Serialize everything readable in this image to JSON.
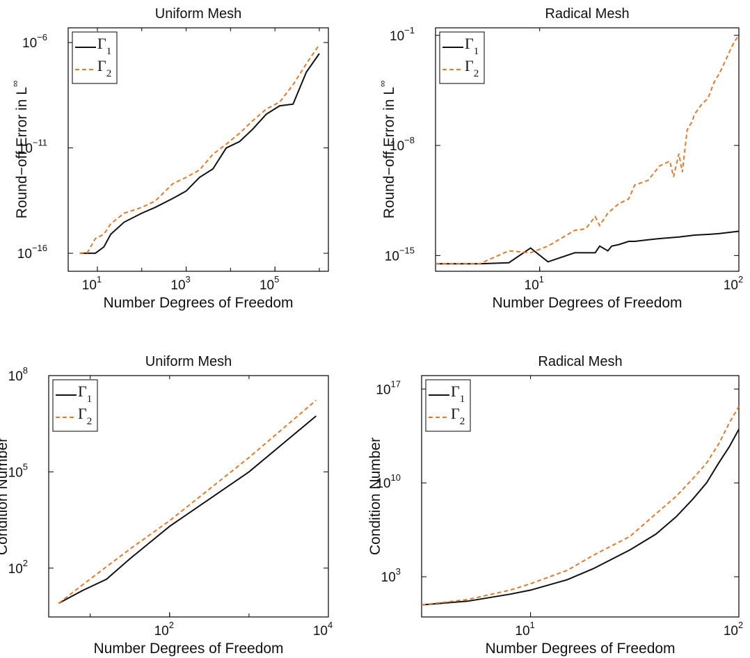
{
  "colors": {
    "gamma1": "#111111",
    "gamma2": "#e07a2c",
    "axis": "#000000"
  },
  "chart_data": [
    {
      "type": "line",
      "title": "Uniform Mesh",
      "xlabel": "Number Degrees of Freedom",
      "ylabel": "Round−off Error in L",
      "ylabel_superscript": "∞",
      "xscale": "log",
      "yscale": "log",
      "xlim": [
        2.2,
        1600000
      ],
      "ylim": [
        1.4e-17,
        5e-06
      ],
      "xticks": [
        {
          "v": 10,
          "base": "10",
          "exp": "1"
        },
        {
          "v": 1000,
          "base": "10",
          "exp": "3"
        },
        {
          "v": 100000,
          "base": "10",
          "exp": "5"
        }
      ],
      "yticks": [
        {
          "v": 1e-16,
          "base": "10",
          "exp": "−16"
        },
        {
          "v": 1e-11,
          "base": "10",
          "exp": "−11"
        },
        {
          "v": 1e-06,
          "base": "10",
          "exp": "−6"
        }
      ],
      "legend": "top-left",
      "series": [
        {
          "name": "Γ",
          "sub": "1",
          "style": "solid",
          "x": [
            4,
            6,
            9,
            14,
            20,
            40,
            100,
            200,
            500,
            1000,
            2000,
            4000,
            8000,
            16000,
            32000,
            64000,
            128000,
            256000,
            512000,
            1000000
          ],
          "y": [
            1e-16,
            1e-16,
            1e-16,
            2e-16,
            8e-16,
            3e-15,
            8e-15,
            1.5e-14,
            4e-14,
            9e-14,
            4e-13,
            1e-12,
            1e-11,
            2e-11,
            8e-11,
            4e-10,
            1e-09,
            1.2e-09,
            4e-08,
            3e-07
          ]
        },
        {
          "name": "Γ",
          "sub": "2",
          "style": "dashed",
          "x": [
            4,
            6,
            9,
            14,
            20,
            40,
            100,
            200,
            500,
            1000,
            2000,
            4000,
            8000,
            16000,
            32000,
            64000,
            128000,
            256000,
            512000,
            1000000
          ],
          "y": [
            1e-16,
            1.1e-16,
            5e-16,
            8e-16,
            2.5e-15,
            8e-15,
            1.5e-14,
            3e-14,
            2e-13,
            4e-13,
            9e-13,
            5e-12,
            1.5e-11,
            5e-11,
            2e-10,
            7e-10,
            1.5e-09,
            1e-08,
            1e-07,
            8e-07
          ]
        }
      ]
    },
    {
      "type": "line",
      "title": "Radical Mesh",
      "xlabel": "Number Degrees of Freedom",
      "ylabel": "Round−off Error in L",
      "ylabel_superscript": "∞",
      "xscale": "log",
      "yscale": "log",
      "xlim": [
        3,
        100
      ],
      "ylim": [
        1e-16,
        0.3
      ],
      "xticks": [
        {
          "v": 10,
          "base": "10",
          "exp": "1"
        },
        {
          "v": 100,
          "base": "10",
          "exp": "2"
        }
      ],
      "yticks": [
        {
          "v": 1e-15,
          "base": "10",
          "exp": "−15"
        },
        {
          "v": 1e-08,
          "base": "10",
          "exp": "−8"
        },
        {
          "v": 0.1,
          "base": "10",
          "exp": "−1"
        }
      ],
      "legend": "top-left",
      "series": [
        {
          "name": "Γ",
          "sub": "1",
          "style": "solid",
          "x": [
            3,
            4,
            5,
            7,
            9,
            11,
            15,
            19,
            20,
            22,
            23,
            25,
            28,
            30,
            35,
            40,
            50,
            60,
            70,
            80,
            90,
            100
          ],
          "y": [
            3e-16,
            3e-16,
            3e-16,
            3.5e-16,
            3e-15,
            4e-16,
            1.5e-15,
            1.5e-15,
            4e-15,
            2e-15,
            4e-15,
            5e-15,
            8e-15,
            8e-15,
            1e-14,
            1.2e-14,
            1.5e-14,
            2e-14,
            2.2e-14,
            2.5e-14,
            3e-14,
            3.5e-14
          ]
        },
        {
          "name": "Γ",
          "sub": "2",
          "style": "dashed",
          "x": [
            3,
            4,
            5,
            7,
            9,
            11,
            15,
            17,
            19,
            20,
            22,
            25,
            28,
            30,
            35,
            40,
            45,
            47,
            50,
            52,
            55,
            58,
            60,
            65,
            70,
            75,
            80,
            85,
            90,
            95,
            100
          ],
          "y": [
            3e-16,
            3e-16,
            3e-16,
            2e-15,
            1.5e-15,
            4e-15,
            4e-14,
            5e-14,
            3e-13,
            8e-14,
            5e-13,
            2e-12,
            4e-12,
            3e-11,
            6e-11,
            5e-10,
            1e-09,
            1e-10,
            3e-09,
            2e-10,
            1e-07,
            3e-07,
            1e-06,
            4e-06,
            1e-05,
            0.0001,
            0.0004,
            0.002,
            0.01,
            0.04,
            0.1
          ]
        }
      ]
    },
    {
      "type": "line",
      "title": "Uniform Mesh",
      "xlabel": "Number Degrees of Freedom",
      "ylabel": "Condition Number",
      "xscale": "log",
      "yscale": "log",
      "xlim": [
        3,
        10000
      ],
      "ylim": [
        3,
        100000000
      ],
      "xticks": [
        {
          "v": 100,
          "base": "10",
          "exp": "2"
        },
        {
          "v": 10000,
          "base": "10",
          "exp": "4"
        }
      ],
      "yticks": [
        {
          "v": 100,
          "base": "10",
          "exp": "2"
        },
        {
          "v": 100000,
          "base": "10",
          "exp": "5"
        },
        {
          "v": 100000000,
          "base": "10",
          "exp": "8"
        }
      ],
      "legend": "top-left",
      "series": [
        {
          "name": "Γ",
          "sub": "1",
          "style": "solid",
          "x": [
            4,
            8,
            16,
            32,
            100,
            1000,
            7000
          ],
          "y": [
            8,
            20,
            45,
            200,
            2000,
            100000,
            5500000
          ]
        },
        {
          "name": "Γ",
          "sub": "2",
          "style": "dashed",
          "x": [
            4,
            8,
            16,
            32,
            100,
            1000,
            7000
          ],
          "y": [
            8,
            30,
            110,
            400,
            3000,
            280000,
            17000000
          ]
        }
      ]
    },
    {
      "type": "line",
      "title": "Radical Mesh",
      "xlabel": "Number Degrees of Freedom",
      "ylabel": "Condition Number",
      "xscale": "log",
      "yscale": "log",
      "xlim": [
        3,
        100
      ],
      "ylim": [
        1,
        1e+18
      ],
      "xticks": [
        {
          "v": 10,
          "base": "10",
          "exp": "1"
        },
        {
          "v": 100,
          "base": "10",
          "exp": "2"
        }
      ],
      "yticks": [
        {
          "v": 1000,
          "base": "10",
          "exp": "3"
        },
        {
          "v": 10000000000.0,
          "base": "10",
          "exp": "10"
        },
        {
          "v": 1e+17,
          "base": "10",
          "exp": "17"
        }
      ],
      "legend": "top-left",
      "series": [
        {
          "name": "Γ",
          "sub": "1",
          "style": "solid",
          "x": [
            3,
            5,
            8,
            10,
            15,
            20,
            30,
            40,
            50,
            60,
            70,
            80,
            90,
            100
          ],
          "y": [
            8,
            15,
            50,
            100,
            600,
            4000,
            100000,
            1500000,
            30000000,
            600000000,
            10000000000,
            300000000000,
            5000000000000,
            100000000000000
          ]
        },
        {
          "name": "Γ",
          "sub": "2",
          "style": "dashed",
          "x": [
            3,
            5,
            8,
            10,
            15,
            20,
            30,
            40,
            50,
            60,
            70,
            80,
            90,
            100
          ],
          "y": [
            8,
            20,
            100,
            300,
            3000,
            40000,
            1000000,
            50000000,
            1000000000,
            20000000000,
            300000000000,
            8000000000000,
            300000000000000,
            5000000000000000
          ]
        }
      ]
    }
  ]
}
